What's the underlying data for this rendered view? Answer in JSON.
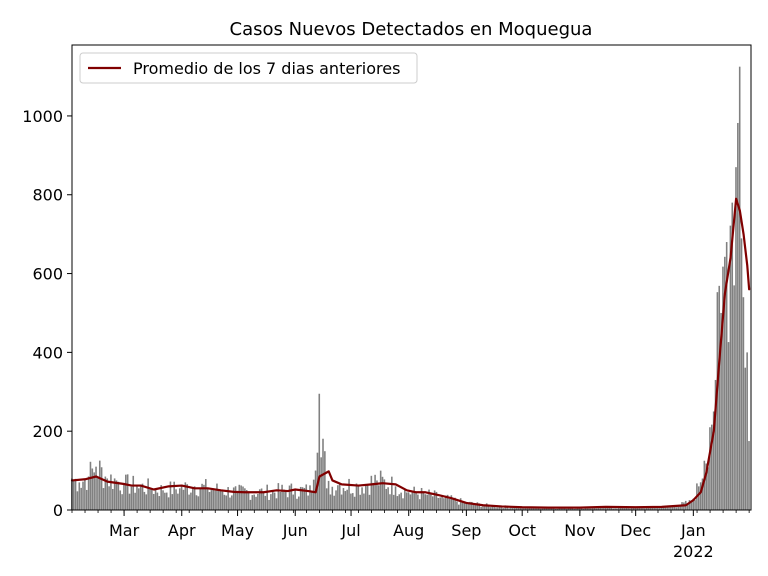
{
  "chart_data": {
    "type": "bar",
    "title": "Casos Nuevos Detectados en Moquegua",
    "xlabel": "",
    "ylabel": "",
    "ylim": [
      0,
      1180
    ],
    "yticks": [
      0,
      200,
      400,
      600,
      800,
      1000
    ],
    "xrange": [
      "2021-02-01",
      "2022-02-01"
    ],
    "xticks": [
      {
        "date": "2021-03-01",
        "label": "Mar"
      },
      {
        "date": "2021-04-01",
        "label": "Apr"
      },
      {
        "date": "2021-05-01",
        "label": "May"
      },
      {
        "date": "2021-06-01",
        "label": "Jun"
      },
      {
        "date": "2021-07-01",
        "label": "Jul"
      },
      {
        "date": "2021-08-01",
        "label": "Aug"
      },
      {
        "date": "2021-09-01",
        "label": "Sep"
      },
      {
        "date": "2021-10-01",
        "label": "Oct"
      },
      {
        "date": "2021-11-01",
        "label": "Nov"
      },
      {
        "date": "2021-12-01",
        "label": "Dec"
      },
      {
        "date": "2022-01-01",
        "label": "Jan"
      }
    ],
    "year_label": {
      "date": "2022-01-01",
      "label": "2022"
    },
    "grid": false,
    "legend": {
      "position": "top-left",
      "entries": [
        "Promedio de los 7 dias anteriores"
      ]
    },
    "colors": {
      "bars": "#808080",
      "line": "#800000"
    },
    "series": [
      {
        "type": "bar",
        "daily_anchors": [
          [
            "2021-02-01",
            80
          ],
          [
            "2021-02-05",
            70
          ],
          [
            "2021-02-10",
            85
          ],
          [
            "2021-02-14",
            110
          ],
          [
            "2021-02-20",
            80
          ],
          [
            "2021-02-25",
            75
          ],
          [
            "2021-03-01",
            65
          ],
          [
            "2021-03-08",
            60
          ],
          [
            "2021-03-15",
            55
          ],
          [
            "2021-03-22",
            50
          ],
          [
            "2021-03-31",
            55
          ],
          [
            "2021-04-08",
            60
          ],
          [
            "2021-04-15",
            55
          ],
          [
            "2021-04-22",
            50
          ],
          [
            "2021-05-01",
            45
          ],
          [
            "2021-05-15",
            45
          ],
          [
            "2021-06-01",
            50
          ],
          [
            "2021-06-10",
            48
          ],
          [
            "2021-06-14",
            295
          ],
          [
            "2021-06-18",
            55
          ],
          [
            "2021-06-25",
            65
          ],
          [
            "2021-07-05",
            60
          ],
          [
            "2021-07-15",
            75
          ],
          [
            "2021-07-25",
            60
          ],
          [
            "2021-08-01",
            45
          ],
          [
            "2021-08-10",
            40
          ],
          [
            "2021-08-20",
            30
          ],
          [
            "2021-09-01",
            18
          ],
          [
            "2021-09-15",
            10
          ],
          [
            "2021-10-01",
            6
          ],
          [
            "2021-10-15",
            5
          ],
          [
            "2021-11-01",
            5
          ],
          [
            "2021-11-15",
            6
          ],
          [
            "2021-12-01",
            6
          ],
          [
            "2021-12-20",
            8
          ],
          [
            "2021-12-31",
            20
          ],
          [
            "2022-01-04",
            60
          ],
          [
            "2022-01-07",
            125
          ],
          [
            "2022-01-10",
            210
          ],
          [
            "2022-01-13",
            330
          ],
          [
            "2022-01-16",
            500
          ],
          [
            "2022-01-19",
            680
          ],
          [
            "2022-01-22",
            780
          ],
          [
            "2022-01-24",
            870
          ],
          [
            "2022-01-26",
            1125
          ],
          [
            "2022-01-28",
            540
          ],
          [
            "2022-01-30",
            400
          ],
          [
            "2022-01-31",
            175
          ]
        ]
      },
      {
        "type": "line",
        "name": "Promedio de los 7 dias anteriores",
        "points": [
          [
            "2021-02-01",
            75
          ],
          [
            "2021-02-08",
            78
          ],
          [
            "2021-02-14",
            85
          ],
          [
            "2021-02-20",
            72
          ],
          [
            "2021-03-01",
            66
          ],
          [
            "2021-03-05",
            62
          ],
          [
            "2021-03-10",
            62
          ],
          [
            "2021-03-17",
            52
          ],
          [
            "2021-03-25",
            60
          ],
          [
            "2021-04-01",
            62
          ],
          [
            "2021-04-08",
            55
          ],
          [
            "2021-04-15",
            55
          ],
          [
            "2021-04-22",
            50
          ],
          [
            "2021-04-29",
            46
          ],
          [
            "2021-05-05",
            45
          ],
          [
            "2021-05-15",
            45
          ],
          [
            "2021-05-22",
            50
          ],
          [
            "2021-05-28",
            48
          ],
          [
            "2021-06-01",
            52
          ],
          [
            "2021-06-08",
            48
          ],
          [
            "2021-06-12",
            45
          ],
          [
            "2021-06-14",
            85
          ],
          [
            "2021-06-19",
            98
          ],
          [
            "2021-06-21",
            75
          ],
          [
            "2021-06-26",
            65
          ],
          [
            "2021-07-05",
            62
          ],
          [
            "2021-07-12",
            65
          ],
          [
            "2021-07-18",
            68
          ],
          [
            "2021-07-25",
            65
          ],
          [
            "2021-07-31",
            50
          ],
          [
            "2021-08-05",
            45
          ],
          [
            "2021-08-10",
            45
          ],
          [
            "2021-08-17",
            38
          ],
          [
            "2021-08-24",
            30
          ],
          [
            "2021-09-01",
            18
          ],
          [
            "2021-09-10",
            12
          ],
          [
            "2021-09-20",
            9
          ],
          [
            "2021-10-01",
            7
          ],
          [
            "2021-10-15",
            6
          ],
          [
            "2021-11-01",
            6
          ],
          [
            "2021-11-15",
            8
          ],
          [
            "2021-12-01",
            7
          ],
          [
            "2021-12-15",
            8
          ],
          [
            "2021-12-28",
            12
          ],
          [
            "2022-01-01",
            25
          ],
          [
            "2022-01-05",
            45
          ],
          [
            "2022-01-08",
            95
          ],
          [
            "2022-01-12",
            200
          ],
          [
            "2022-01-15",
            380
          ],
          [
            "2022-01-18",
            550
          ],
          [
            "2022-01-21",
            640
          ],
          [
            "2022-01-24",
            790
          ],
          [
            "2022-01-26",
            760
          ],
          [
            "2022-01-28",
            700
          ],
          [
            "2022-01-30",
            620
          ],
          [
            "2022-01-31",
            560
          ]
        ]
      }
    ]
  }
}
